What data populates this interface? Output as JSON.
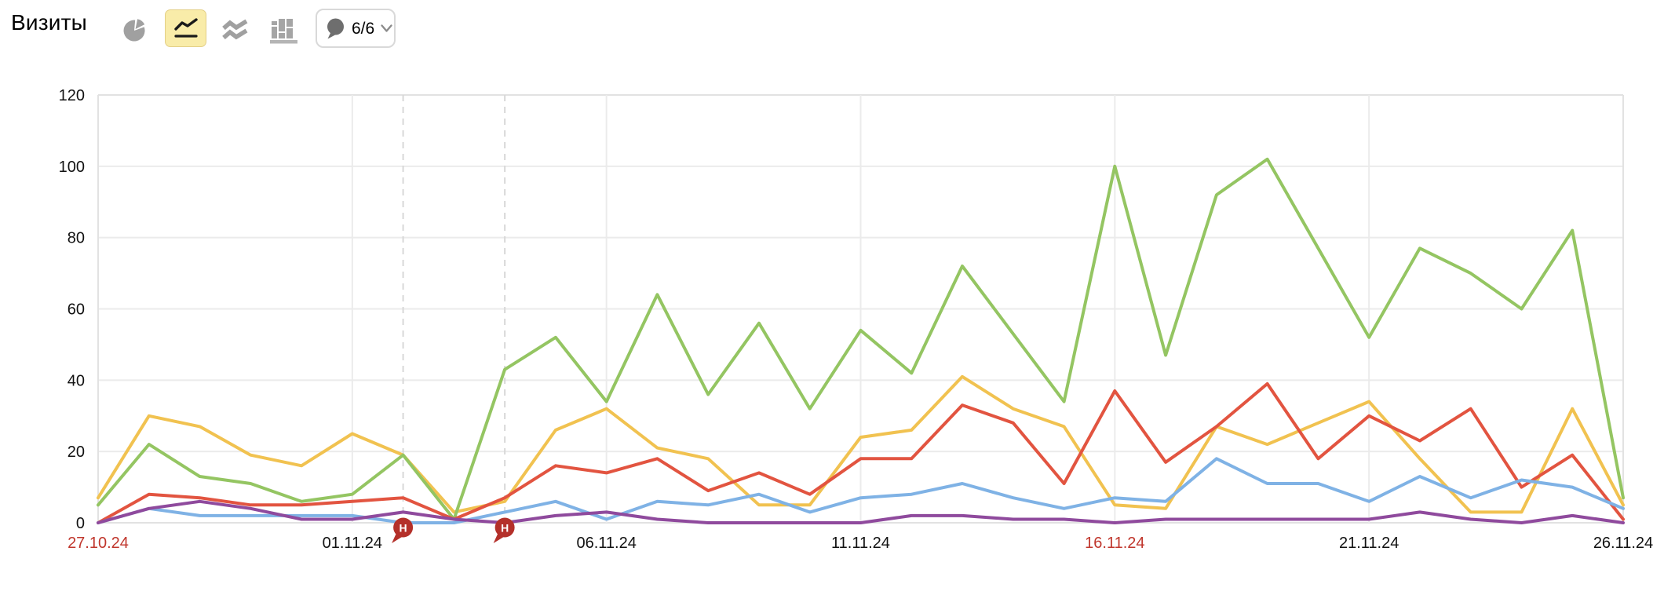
{
  "header": {
    "title": "Визиты",
    "selected_chart_type": "line",
    "chart_type_buttons": [
      "pie",
      "line",
      "area",
      "columns"
    ],
    "notes_button": {
      "count_label": "6/6"
    }
  },
  "colors": {
    "grid": "#ebebeb",
    "plot_border": "#e2e2e2",
    "dashed_line": "#d8d8d8",
    "tick_label": "#111111",
    "weekend_tick_label": "#c0362c",
    "annotation_fill": "#b4302a",
    "annotation_text": "#ffffff",
    "icon_gray": "#a0a0a0",
    "bubble_gray": "#6e6e6e",
    "selected_btn_bg": "#f9eca9"
  },
  "chart_data": {
    "type": "line",
    "title": "Визиты",
    "ylim": [
      0,
      120
    ],
    "yticks": [
      0,
      20,
      40,
      60,
      80,
      100,
      120
    ],
    "grid": true,
    "legend": "none",
    "x": [
      "27.10.24",
      "28.10.24",
      "29.10.24",
      "30.10.24",
      "31.10.24",
      "01.11.24",
      "02.11.24",
      "03.11.24",
      "04.11.24",
      "05.11.24",
      "06.11.24",
      "07.11.24",
      "08.11.24",
      "09.11.24",
      "10.11.24",
      "11.11.24",
      "12.11.24",
      "13.11.24",
      "14.11.24",
      "15.11.24",
      "16.11.24",
      "17.11.24",
      "18.11.24",
      "19.11.24",
      "20.11.24",
      "21.11.24",
      "22.11.24",
      "23.11.24",
      "24.11.24",
      "25.11.24",
      "26.11.24"
    ],
    "x_tick_days": [
      0,
      5,
      10,
      15,
      20,
      25,
      30
    ],
    "weekend_tick_days": [
      0,
      20
    ],
    "dashed_vlines_days": [
      6,
      8
    ],
    "annotations": [
      {
        "day": 6,
        "label": "H"
      },
      {
        "day": 8,
        "label": "H"
      }
    ],
    "series": [
      {
        "name": "yellow",
        "color": "#f1c250",
        "values": [
          7,
          30,
          27,
          19,
          16,
          25,
          19,
          3,
          6,
          26,
          32,
          21,
          18,
          5,
          5,
          24,
          26,
          41,
          32,
          27,
          5,
          4,
          27,
          22,
          28,
          34,
          18,
          3,
          3,
          32,
          5
        ]
      },
      {
        "name": "green",
        "color": "#94c562",
        "values": [
          5,
          22,
          13,
          11,
          6,
          8,
          19,
          1,
          43,
          52,
          34,
          64,
          36,
          56,
          32,
          54,
          42,
          72,
          53,
          34,
          100,
          47,
          92,
          102,
          77,
          52,
          77,
          70,
          60,
          82,
          7
        ]
      },
      {
        "name": "red",
        "color": "#e25440",
        "values": [
          0,
          8,
          7,
          5,
          5,
          6,
          7,
          1,
          7,
          16,
          14,
          18,
          9,
          14,
          8,
          18,
          18,
          33,
          28,
          11,
          37,
          17,
          27,
          39,
          18,
          30,
          23,
          32,
          10,
          19,
          1
        ]
      },
      {
        "name": "blue",
        "color": "#7fb2e5",
        "values": [
          0,
          4,
          2,
          2,
          2,
          2,
          0,
          0,
          3,
          6,
          1,
          6,
          5,
          8,
          3,
          7,
          8,
          11,
          7,
          4,
          7,
          6,
          18,
          11,
          11,
          6,
          13,
          7,
          12,
          10,
          4
        ]
      },
      {
        "name": "purple",
        "color": "#8f4a9d",
        "values": [
          0,
          4,
          6,
          4,
          1,
          1,
          3,
          1,
          0,
          2,
          3,
          1,
          0,
          0,
          0,
          0,
          2,
          2,
          1,
          1,
          0,
          1,
          1,
          1,
          1,
          1,
          3,
          1,
          0,
          2,
          0
        ]
      }
    ]
  }
}
